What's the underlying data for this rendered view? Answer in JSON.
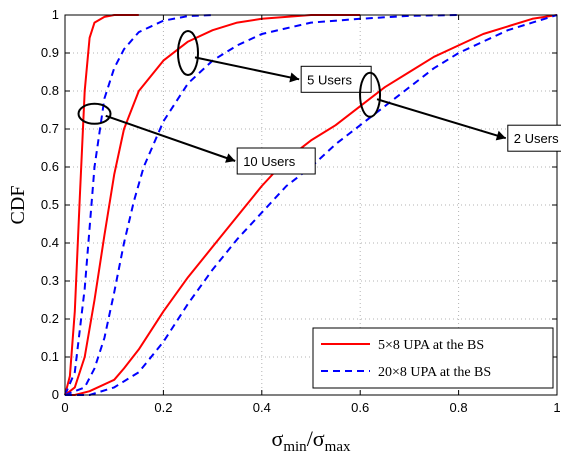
{
  "chart_data": {
    "type": "line",
    "xlabel": {
      "main": "σ",
      "sub1": "min",
      "sep": "/σ",
      "sub2": "max"
    },
    "ylabel": "CDF",
    "xlim": [
      0,
      1
    ],
    "ylim": [
      0,
      1
    ],
    "xticks": [
      0,
      0.2,
      0.4,
      0.6,
      0.8,
      1
    ],
    "xtick_labels": [
      "0",
      "0.2",
      "0.4",
      "0.6",
      "0.8",
      "1"
    ],
    "yticks": [
      0,
      0.1,
      0.2,
      0.3,
      0.4,
      0.5,
      0.6,
      0.7,
      0.8,
      0.9,
      1
    ],
    "ytick_labels": [
      "0",
      "0.1",
      "0.2",
      "0.3",
      "0.4",
      "0.5",
      "0.6",
      "0.7",
      "0.8",
      "0.9",
      "1"
    ],
    "grid": true,
    "legend_position": "bottom-right",
    "legend": [
      {
        "label": "5×8 UPA at the BS",
        "color": "#ff0000",
        "dash": "solid"
      },
      {
        "label": "20×8 UPA at the BS",
        "color": "#0000ff",
        "dash": "dashed"
      }
    ],
    "series": [
      {
        "legend": 0,
        "group": "10 Users",
        "x": [
          0,
          0.01,
          0.02,
          0.03,
          0.04,
          0.05,
          0.06,
          0.08,
          0.1,
          0.12,
          0.15
        ],
        "y": [
          0,
          0.05,
          0.22,
          0.52,
          0.8,
          0.94,
          0.98,
          0.995,
          1,
          1,
          1
        ]
      },
      {
        "legend": 1,
        "group": "10 Users",
        "x": [
          0,
          0.02,
          0.04,
          0.06,
          0.08,
          0.1,
          0.12,
          0.15,
          0.2,
          0.25,
          0.3
        ],
        "y": [
          0,
          0.06,
          0.28,
          0.6,
          0.78,
          0.86,
          0.91,
          0.955,
          0.985,
          0.997,
          1
        ]
      },
      {
        "legend": 0,
        "group": "5 Users",
        "x": [
          0,
          0.02,
          0.04,
          0.06,
          0.08,
          0.1,
          0.12,
          0.15,
          0.2,
          0.25,
          0.3,
          0.35,
          0.4,
          0.5,
          0.6
        ],
        "y": [
          0,
          0.02,
          0.1,
          0.25,
          0.42,
          0.58,
          0.7,
          0.8,
          0.88,
          0.93,
          0.96,
          0.98,
          0.99,
          1,
          1
        ]
      },
      {
        "legend": 1,
        "group": "5 Users",
        "x": [
          0,
          0.04,
          0.06,
          0.08,
          0.1,
          0.12,
          0.14,
          0.16,
          0.2,
          0.25,
          0.3,
          0.35,
          0.4,
          0.5,
          0.6,
          0.7,
          0.8
        ],
        "y": [
          0,
          0.02,
          0.07,
          0.15,
          0.27,
          0.4,
          0.51,
          0.6,
          0.72,
          0.82,
          0.88,
          0.92,
          0.95,
          0.98,
          0.99,
          0.998,
          1
        ]
      },
      {
        "legend": 0,
        "group": "2 Users",
        "x": [
          0,
          0.02,
          0.05,
          0.1,
          0.12,
          0.15,
          0.2,
          0.25,
          0.3,
          0.35,
          0.4,
          0.45,
          0.5,
          0.55,
          0.6,
          0.65,
          0.7,
          0.75,
          0.8,
          0.85,
          0.9,
          0.95,
          1
        ],
        "y": [
          0,
          0,
          0.01,
          0.04,
          0.07,
          0.12,
          0.22,
          0.31,
          0.39,
          0.47,
          0.55,
          0.62,
          0.67,
          0.71,
          0.76,
          0.81,
          0.85,
          0.89,
          0.92,
          0.95,
          0.97,
          0.99,
          1
        ]
      },
      {
        "legend": 1,
        "group": "2 Users",
        "x": [
          0,
          0.05,
          0.1,
          0.15,
          0.2,
          0.25,
          0.3,
          0.35,
          0.4,
          0.45,
          0.5,
          0.55,
          0.6,
          0.65,
          0.7,
          0.75,
          0.8,
          0.85,
          0.9,
          0.95,
          1
        ],
        "y": [
          0,
          0,
          0.02,
          0.06,
          0.14,
          0.24,
          0.33,
          0.41,
          0.48,
          0.55,
          0.6,
          0.66,
          0.71,
          0.76,
          0.81,
          0.86,
          0.9,
          0.93,
          0.96,
          0.98,
          1
        ]
      }
    ],
    "annotations": [
      {
        "text": "10 Users",
        "ellipse_at": [
          0.06,
          0.74
        ],
        "box_at": [
          0.35,
          0.65
        ]
      },
      {
        "text": "5 Users",
        "ellipse_at": [
          0.25,
          0.9
        ],
        "box_at": [
          0.48,
          0.865
        ]
      },
      {
        "text": "2 Users",
        "ellipse_at": [
          0.62,
          0.79
        ],
        "box_at": [
          0.9,
          0.71
        ]
      }
    ]
  }
}
